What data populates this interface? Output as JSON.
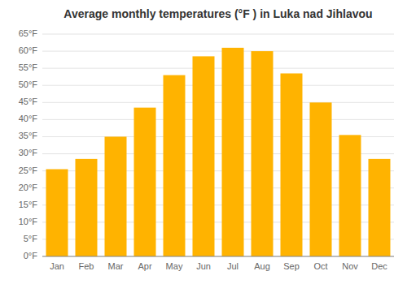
{
  "chart_data": {
    "type": "bar",
    "title": "Average monthly temperatures (°F ) in Luka nad Jihlavou",
    "categories": [
      "Jan",
      "Feb",
      "Mar",
      "Apr",
      "May",
      "Jun",
      "Jul",
      "Aug",
      "Sep",
      "Oct",
      "Nov",
      "Dec"
    ],
    "values": [
      25.5,
      28.5,
      35.0,
      43.5,
      53.0,
      58.5,
      61.0,
      60.0,
      53.5,
      45.0,
      35.5,
      28.5
    ],
    "color": "#FFB300",
    "ylim": [
      0,
      65
    ],
    "yticks": [
      {
        "value": 0,
        "label": "0°F"
      },
      {
        "value": 5,
        "label": "5°F"
      },
      {
        "value": 10,
        "label": "10°F"
      },
      {
        "value": 15,
        "label": "15°F"
      },
      {
        "value": 20,
        "label": "20°F"
      },
      {
        "value": 25,
        "label": "25°F"
      },
      {
        "value": 30,
        "label": "30°F"
      },
      {
        "value": 35,
        "label": "35°F"
      },
      {
        "value": 40,
        "label": "40°F"
      },
      {
        "value": 45,
        "label": "45°F"
      },
      {
        "value": 50,
        "label": "50°F"
      },
      {
        "value": 55,
        "label": "55°F"
      },
      {
        "value": 60,
        "label": "60°F"
      },
      {
        "value": 65,
        "label": "65°F"
      }
    ],
    "grid": true
  }
}
